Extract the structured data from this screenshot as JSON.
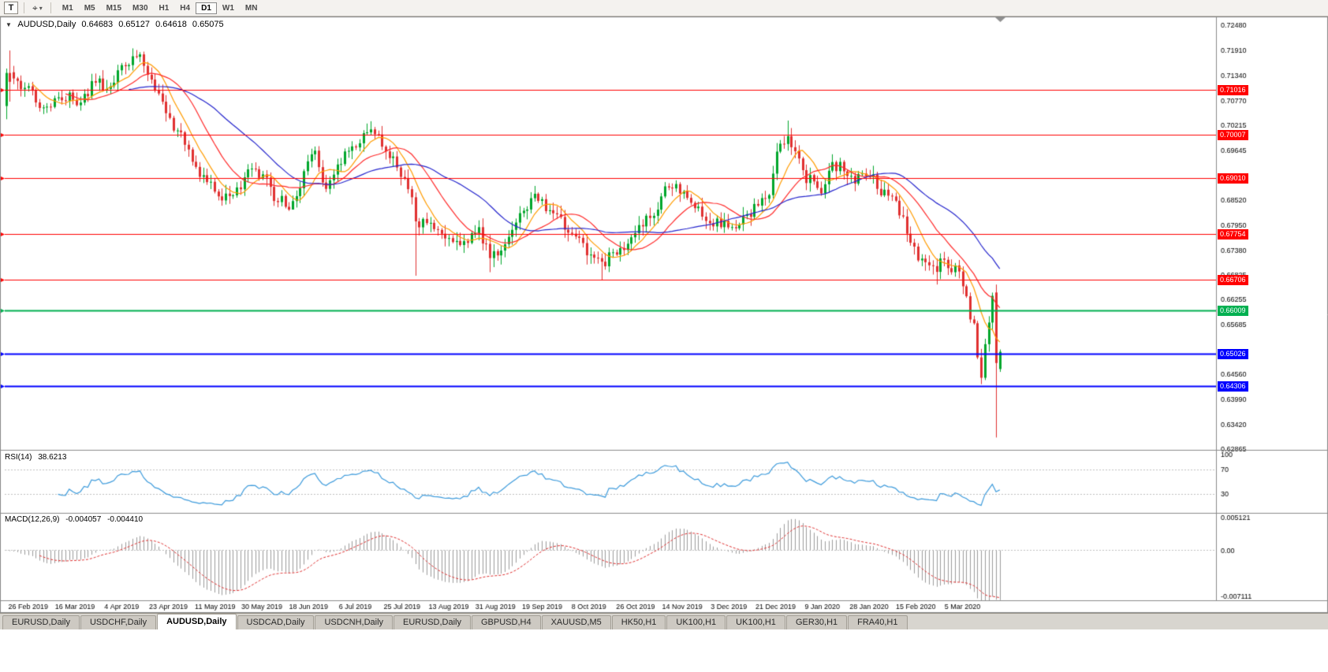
{
  "toolbar": {
    "text_tool": "T",
    "timeframes": [
      "M1",
      "M5",
      "M15",
      "M30",
      "H1",
      "H4",
      "D1",
      "W1",
      "MN"
    ],
    "active_timeframe": "D1"
  },
  "chart_title": {
    "collapse_icon": "▼",
    "symbol": "AUDUSD,Daily",
    "open": "0.64683",
    "high": "0.65127",
    "low": "0.64618",
    "close": "0.65075"
  },
  "rsi_label": {
    "name": "RSI(14)",
    "value": "38.6213"
  },
  "macd_label": {
    "name": "MACD(12,26,9)",
    "value1": "-0.004057",
    "value2": "-0.004410"
  },
  "tabs": [
    "EURUSD,Daily",
    "USDCHF,Daily",
    "AUDUSD,Daily",
    "USDCAD,Daily",
    "USDCNH,Daily",
    "EURUSD,Daily",
    "GBPUSD,H4",
    "XAUUSD,M5",
    "HK50,H1",
    "UK100,H1",
    "UK100,H1",
    "GER30,H1",
    "FRA40,H1"
  ],
  "active_tab_index": 2,
  "chart_data": {
    "type": "candlestick",
    "symbol": "AUDUSD",
    "timeframe": "Daily",
    "seed": 12,
    "candle_count": 268,
    "noise": 0.003,
    "price_axis": {
      "min": 0.6285,
      "max": 0.7268,
      "ticks": [
        "0.72480",
        "0.71910",
        "0.71340",
        "0.70770",
        "0.70215",
        "0.69645",
        "0.68520",
        "0.67950",
        "0.67380",
        "0.66825",
        "0.66255",
        "0.65685",
        "0.64560",
        "0.63990",
        "0.63420",
        "0.62865"
      ]
    },
    "dates": [
      "26 Feb 2019",
      "16 Mar 2019",
      "4 Apr 2019",
      "23 Apr 2019",
      "11 May 2019",
      "30 May 2019",
      "18 Jun 2019",
      "6 Jul 2019",
      "25 Jul 2019",
      "13 Aug 2019",
      "31 Aug 2019",
      "19 Sep 2019",
      "8 Oct 2019",
      "26 Oct 2019",
      "14 Nov 2019",
      "3 Dec 2019",
      "21 Dec 2019",
      "9 Jan 2020",
      "28 Jan 2020",
      "15 Feb 2020",
      "5 Mar 2020"
    ],
    "close_keyframes": [
      [
        0,
        0.7135
      ],
      [
        6,
        0.7095
      ],
      [
        11,
        0.706
      ],
      [
        15,
        0.709
      ],
      [
        19,
        0.708
      ],
      [
        24,
        0.7115
      ],
      [
        28,
        0.711
      ],
      [
        32,
        0.7155
      ],
      [
        35,
        0.7185
      ],
      [
        37,
        0.716
      ],
      [
        41,
        0.7095
      ],
      [
        45,
        0.702
      ],
      [
        48,
        0.699
      ],
      [
        51,
        0.693
      ],
      [
        54,
        0.689
      ],
      [
        58,
        0.6855
      ],
      [
        63,
        0.688
      ],
      [
        66,
        0.6925
      ],
      [
        70,
        0.689
      ],
      [
        73,
        0.685
      ],
      [
        77,
        0.684
      ],
      [
        80,
        0.692
      ],
      [
        83,
        0.696
      ],
      [
        86,
        0.6865
      ],
      [
        90,
        0.6935
      ],
      [
        94,
        0.6985
      ],
      [
        97,
        0.701
      ],
      [
        100,
        0.699
      ],
      [
        104,
        0.6945
      ],
      [
        107,
        0.69
      ],
      [
        109,
        0.686
      ],
      [
        110,
        0.679
      ],
      [
        114,
        0.68
      ],
      [
        117,
        0.677
      ],
      [
        121,
        0.6755
      ],
      [
        124,
        0.6765
      ],
      [
        127,
        0.679
      ],
      [
        130,
        0.672
      ],
      [
        134,
        0.676
      ],
      [
        137,
        0.68
      ],
      [
        141,
        0.686
      ],
      [
        144,
        0.684
      ],
      [
        148,
        0.681
      ],
      [
        150,
        0.679
      ],
      [
        153,
        0.677
      ],
      [
        157,
        0.673
      ],
      [
        160,
        0.6705
      ],
      [
        163,
        0.6735
      ],
      [
        167,
        0.675
      ],
      [
        170,
        0.678
      ],
      [
        174,
        0.683
      ],
      [
        177,
        0.687
      ],
      [
        180,
        0.6885
      ],
      [
        184,
        0.6855
      ],
      [
        187,
        0.682
      ],
      [
        191,
        0.68
      ],
      [
        194,
        0.679
      ],
      [
        199,
        0.681
      ],
      [
        202,
        0.6845
      ],
      [
        205,
        0.685
      ],
      [
        207,
        0.695
      ],
      [
        210,
        0.7005
      ],
      [
        212,
        0.696
      ],
      [
        215,
        0.69
      ],
      [
        219,
        0.688
      ],
      [
        222,
        0.6935
      ],
      [
        225,
        0.692
      ],
      [
        228,
        0.6895
      ],
      [
        232,
        0.6915
      ],
      [
        235,
        0.687
      ],
      [
        239,
        0.685
      ],
      [
        241,
        0.68
      ],
      [
        244,
        0.674
      ],
      [
        247,
        0.67
      ],
      [
        250,
        0.669
      ],
      [
        252,
        0.672
      ],
      [
        254,
        0.67
      ],
      [
        256,
        0.668
      ],
      [
        258,
        0.662
      ],
      [
        260,
        0.656
      ],
      [
        261,
        0.649
      ],
      [
        262,
        0.6455
      ],
      [
        263,
        0.653
      ],
      [
        264,
        0.658
      ],
      [
        265,
        0.663
      ],
      [
        266,
        0.664
      ],
      [
        267,
        0.6508
      ]
    ],
    "overrides": {
      "0": {
        "o": 0.7065,
        "h": 0.715,
        "l": 0.7035,
        "c": 0.714
      },
      "1": {
        "o": 0.714,
        "h": 0.7191,
        "l": 0.7075,
        "c": 0.712
      },
      "35": {
        "h": 0.7192
      },
      "77": {
        "l": 0.6832
      },
      "110": {
        "l": 0.668
      },
      "130": {
        "l": 0.6688
      },
      "160": {
        "l": 0.667
      },
      "210": {
        "h": 0.7032
      },
      "250": {
        "l": 0.666
      },
      "262": {
        "l": 0.6434
      },
      "266": {
        "o": 0.6642,
        "h": 0.666,
        "l": 0.6313,
        "c": 0.6482
      },
      "267": {
        "o": 0.64683,
        "h": 0.65127,
        "l": 0.64618,
        "c": 0.65075
      }
    },
    "colors": {
      "up": "#00a62b",
      "down": "#e03030",
      "ma_fast": "#ff9c00",
      "ma_mid": "#ff2a2a",
      "ma_slow": "#2525cd",
      "rsi": "#3d9bdc",
      "macd_hist": "#9c9c9c",
      "macd_signal": "#e03030",
      "level_dash": "#c0c0c0",
      "frame": "#8a8a8a"
    },
    "mas": [
      {
        "period": 8,
        "color": "#ff9c00"
      },
      {
        "period": 17,
        "color": "#ff2a2a"
      },
      {
        "period": 34,
        "color": "#2525cd"
      }
    ],
    "hlines": [
      {
        "price": 0.71016,
        "color": "#ff0000",
        "width": 1,
        "label": "0.71016"
      },
      {
        "price": 0.70007,
        "color": "#ff0000",
        "width": 1,
        "label": "0.70007"
      },
      {
        "price": 0.6901,
        "color": "#ff0000",
        "width": 1,
        "label": "0.69010"
      },
      {
        "price": 0.67754,
        "color": "#ff0000",
        "width": 1,
        "label": "0.67754"
      },
      {
        "price": 0.66706,
        "color": "#ff0000",
        "width": 1,
        "label": "0.66706"
      },
      {
        "price": 0.66009,
        "color": "#00b050",
        "width": 2,
        "label": "0.66009"
      },
      {
        "price": 0.65026,
        "color": "#0000ff",
        "width": 2,
        "label": "0.65026"
      },
      {
        "price": 0.64306,
        "color": "#0000ff",
        "width": 2,
        "label": "0.64306"
      }
    ],
    "rsi": {
      "period": 14,
      "levels": [
        70,
        30
      ],
      "axis_labels": [
        "100",
        "70",
        "30"
      ],
      "range": [
        0,
        100
      ]
    },
    "macd": {
      "fast": 12,
      "slow": 26,
      "signal": 9,
      "axis_labels": [
        "0.005121",
        "0.00",
        "-0.007111"
      ],
      "range": [
        -0.007111,
        0.005121
      ]
    }
  }
}
